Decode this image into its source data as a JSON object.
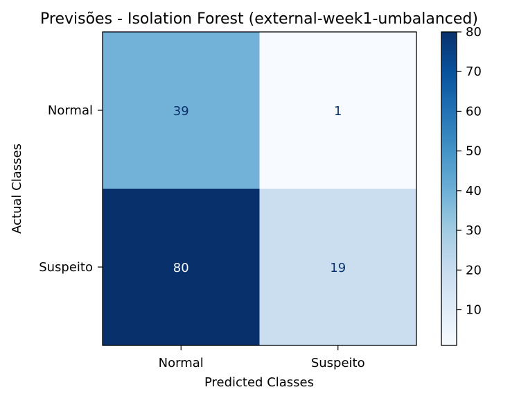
{
  "chart_data": {
    "type": "heatmap",
    "title": "Previsões - Isolation Forest (external-week1-umbalanced)",
    "xlabel": "Predicted Classes",
    "ylabel": "Actual Classes",
    "x_categories": [
      "Normal",
      "Suspeito"
    ],
    "y_categories": [
      "Normal",
      "Suspeito"
    ],
    "values": [
      [
        39,
        1
      ],
      [
        80,
        19
      ]
    ],
    "colormap": "Blues",
    "color_range": [
      1,
      80
    ],
    "colorbar_ticks": [
      10,
      20,
      30,
      40,
      50,
      60,
      70,
      80
    ],
    "colors": {
      "low": "#f7fbff",
      "high": "#08306b",
      "text_on_dark": "#f7fbff",
      "text_on_light": "#08306b",
      "axes": "#000000"
    }
  }
}
